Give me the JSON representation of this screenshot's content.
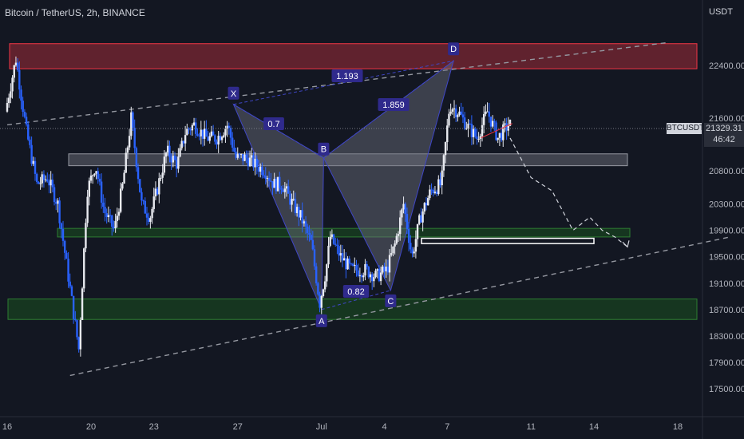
{
  "header": {
    "title": "Bitcoin / TetherUS, 2h, BINANCE"
  },
  "axis": {
    "unit_label": "USDT"
  },
  "price_tag": {
    "symbol": "BTCUSDT",
    "price": "21329.31",
    "countdown": "46:42"
  },
  "chart_data": {
    "type": "candlestick",
    "title": "Bitcoin / TetherUS, 2h, BINANCE",
    "ylabel": "USDT",
    "ylim": [
      17200,
      22900
    ],
    "y_ticks": [
      22400,
      21600,
      20800,
      20300,
      19900,
      19500,
      19100,
      18700,
      18300,
      17900,
      17500
    ],
    "x_ticks": [
      "16",
      "20",
      "23",
      "27",
      "Jul",
      "4",
      "7",
      "11",
      "14",
      "18"
    ],
    "x_tick_days": [
      16,
      20,
      23,
      27,
      31,
      34,
      37,
      41,
      44,
      48
    ],
    "xlim_days": [
      16,
      51.3
    ],
    "price_path": [
      [
        16.0,
        21700
      ],
      [
        16.5,
        22500
      ],
      [
        17.0,
        21400
      ],
      [
        17.5,
        20600
      ],
      [
        18.0,
        20700
      ],
      [
        18.5,
        20300
      ],
      [
        19.0,
        19200
      ],
      [
        19.5,
        18100
      ],
      [
        19.9,
        20500
      ],
      [
        20.3,
        20900
      ],
      [
        20.7,
        20200
      ],
      [
        21.2,
        19900
      ],
      [
        21.6,
        20600
      ],
      [
        22.0,
        21600
      ],
      [
        22.5,
        20300
      ],
      [
        22.9,
        20100
      ],
      [
        23.3,
        20600
      ],
      [
        23.7,
        21100
      ],
      [
        24.2,
        20900
      ],
      [
        24.6,
        21400
      ],
      [
        25.0,
        21500
      ],
      [
        25.6,
        21300
      ],
      [
        26.1,
        21300
      ],
      [
        26.6,
        21500
      ],
      [
        27.0,
        21000
      ],
      [
        27.5,
        21000
      ],
      [
        27.9,
        20900
      ],
      [
        28.4,
        20800
      ],
      [
        28.8,
        20600
      ],
      [
        29.2,
        20600
      ],
      [
        29.7,
        20300
      ],
      [
        30.1,
        20100
      ],
      [
        30.6,
        19700
      ],
      [
        31.0,
        18800
      ],
      [
        31.3,
        19300
      ],
      [
        31.5,
        19800
      ],
      [
        32.0,
        19500
      ],
      [
        32.5,
        19300
      ],
      [
        33.2,
        19300
      ],
      [
        33.7,
        19200
      ],
      [
        34.2,
        19300
      ],
      [
        34.6,
        19700
      ],
      [
        35.0,
        20300
      ],
      [
        35.4,
        19500
      ],
      [
        35.8,
        20100
      ],
      [
        36.3,
        20500
      ],
      [
        36.8,
        20600
      ],
      [
        37.2,
        21800
      ],
      [
        37.6,
        21700
      ],
      [
        38.0,
        21500
      ],
      [
        38.5,
        21300
      ],
      [
        39.0,
        21700
      ],
      [
        39.5,
        21300
      ],
      [
        40.0,
        21500
      ]
    ],
    "harmonic_pattern": {
      "points": [
        {
          "label": "X",
          "day": 26.8,
          "price": 21810
        },
        {
          "label": "A",
          "day": 31.0,
          "price": 18700
        },
        {
          "label": "B",
          "day": 31.1,
          "price": 21000
        },
        {
          "label": "C",
          "day": 34.3,
          "price": 18990
        },
        {
          "label": "D",
          "day": 37.3,
          "price": 22470
        }
      ],
      "ratios": [
        "0.7",
        "0.82",
        "1.193",
        "1.859"
      ]
    },
    "zones": [
      {
        "color": "red",
        "price_low": 22350,
        "price_high": 22730
      },
      {
        "color": "gray",
        "price_low": 20880,
        "price_high": 21060
      },
      {
        "color": "green",
        "price_low": 19800,
        "price_high": 19930
      },
      {
        "color": "green",
        "price_low": 18550,
        "price_high": 18860
      }
    ],
    "projection_path": [
      [
        40.0,
        21300
      ],
      [
        41.0,
        20700
      ],
      [
        42.0,
        20500
      ],
      [
        43.0,
        19900
      ],
      [
        43.8,
        20100
      ],
      [
        44.4,
        19900
      ],
      [
        45.0,
        19800
      ],
      [
        45.6,
        19650
      ]
    ],
    "trendlines": [
      {
        "style": "dashed",
        "from": [
          16.0,
          21500
        ],
        "to": [
          47.6,
          22750
        ]
      },
      {
        "style": "dashed",
        "from": [
          19.0,
          17700
        ],
        "to": [
          50.5,
          19800
        ]
      }
    ],
    "colors": {
      "background": "#131722",
      "candle_up": "#e8eaf0",
      "candle_down": "#2962ff",
      "pattern_fill": "#6f7380",
      "red_zone": "#f23645",
      "green_zone": "#1b5e20",
      "gray_zone": "#787b86"
    }
  }
}
